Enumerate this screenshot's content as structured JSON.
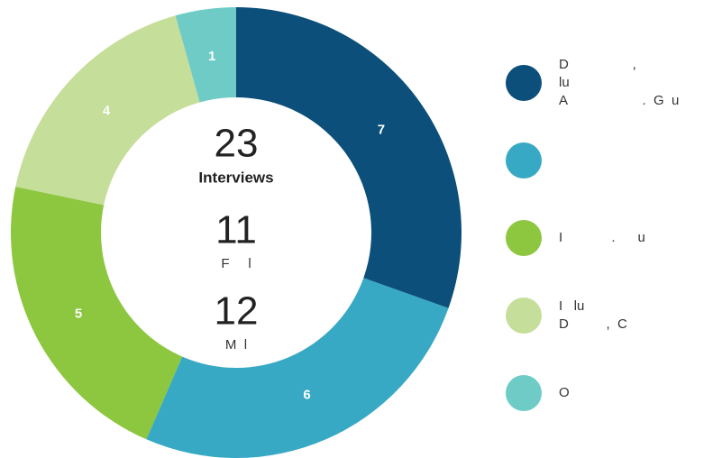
{
  "chart_data": {
    "type": "pie",
    "categories": [
      [
        "D                 ,",
        "lu",
        "A                    .  G  u"
      ],
      null,
      [
        "I             .      u"
      ],
      [
        "I   lu",
        "D          ,  C"
      ],
      [
        "O"
      ]
    ],
    "values": [
      7,
      6,
      5,
      4,
      1
    ],
    "colors": [
      "#0b4f7a",
      "#38a9c4",
      "#8dc63f",
      "#c5de9a",
      "#6fcbc6"
    ],
    "center": {
      "total": "23",
      "total_label": "Interviews",
      "female": "11",
      "female_label": "F     l",
      "male": "12",
      "male_label": "M  l"
    }
  }
}
